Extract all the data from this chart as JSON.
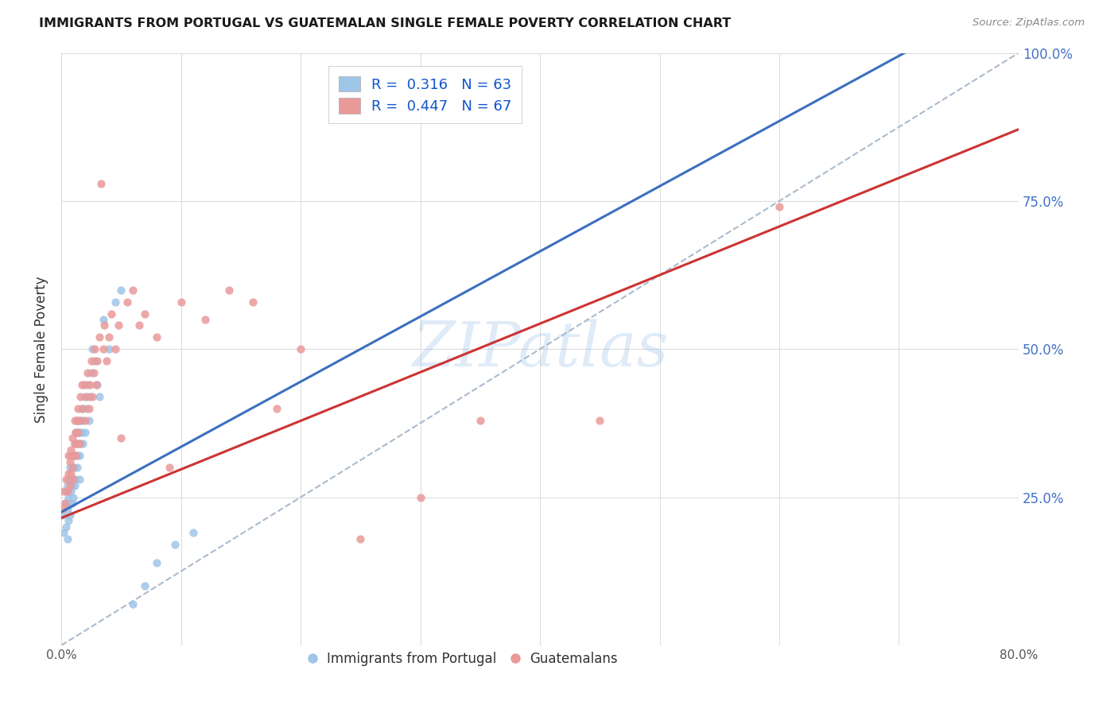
{
  "title": "IMMIGRANTS FROM PORTUGAL VS GUATEMALAN SINGLE FEMALE POVERTY CORRELATION CHART",
  "source": "Source: ZipAtlas.com",
  "ylabel": "Single Female Poverty",
  "xlim": [
    0.0,
    0.8
  ],
  "ylim": [
    0.0,
    1.0
  ],
  "watermark": "ZIPatlas",
  "blue_color": "#9fc5e8",
  "pink_color": "#ea9999",
  "blue_line_color": "#3c6fbf",
  "pink_line_color": "#cc3333",
  "dashed_line_color": "#aabbcc",
  "portugal_x": [
    0.001,
    0.002,
    0.003,
    0.004,
    0.004,
    0.005,
    0.005,
    0.005,
    0.006,
    0.006,
    0.006,
    0.007,
    0.007,
    0.007,
    0.008,
    0.008,
    0.008,
    0.009,
    0.009,
    0.009,
    0.01,
    0.01,
    0.01,
    0.011,
    0.011,
    0.011,
    0.012,
    0.012,
    0.012,
    0.013,
    0.013,
    0.013,
    0.014,
    0.014,
    0.015,
    0.015,
    0.015,
    0.016,
    0.016,
    0.017,
    0.017,
    0.018,
    0.018,
    0.019,
    0.02,
    0.021,
    0.022,
    0.023,
    0.024,
    0.025,
    0.026,
    0.028,
    0.03,
    0.032,
    0.035,
    0.04,
    0.045,
    0.05,
    0.06,
    0.07,
    0.08,
    0.095,
    0.11
  ],
  "portugal_y": [
    0.22,
    0.19,
    0.24,
    0.2,
    0.26,
    0.23,
    0.18,
    0.27,
    0.21,
    0.25,
    0.28,
    0.24,
    0.22,
    0.3,
    0.26,
    0.28,
    0.32,
    0.24,
    0.27,
    0.3,
    0.25,
    0.28,
    0.32,
    0.27,
    0.3,
    0.34,
    0.28,
    0.32,
    0.36,
    0.3,
    0.34,
    0.38,
    0.32,
    0.36,
    0.28,
    0.32,
    0.36,
    0.34,
    0.38,
    0.36,
    0.4,
    0.34,
    0.38,
    0.42,
    0.36,
    0.4,
    0.44,
    0.38,
    0.42,
    0.46,
    0.5,
    0.48,
    0.44,
    0.42,
    0.55,
    0.5,
    0.58,
    0.6,
    0.07,
    0.1,
    0.14,
    0.17,
    0.19
  ],
  "guatemalan_x": [
    0.001,
    0.002,
    0.003,
    0.004,
    0.005,
    0.006,
    0.006,
    0.007,
    0.007,
    0.008,
    0.008,
    0.009,
    0.009,
    0.01,
    0.01,
    0.011,
    0.011,
    0.012,
    0.012,
    0.013,
    0.013,
    0.014,
    0.014,
    0.015,
    0.015,
    0.016,
    0.017,
    0.018,
    0.019,
    0.02,
    0.021,
    0.022,
    0.023,
    0.024,
    0.025,
    0.026,
    0.027,
    0.028,
    0.029,
    0.03,
    0.032,
    0.033,
    0.035,
    0.036,
    0.038,
    0.04,
    0.042,
    0.045,
    0.048,
    0.05,
    0.055,
    0.06,
    0.065,
    0.07,
    0.08,
    0.09,
    0.1,
    0.12,
    0.14,
    0.16,
    0.18,
    0.2,
    0.25,
    0.3,
    0.35,
    0.45,
    0.6
  ],
  "guatemalan_y": [
    0.23,
    0.26,
    0.24,
    0.28,
    0.26,
    0.29,
    0.32,
    0.27,
    0.31,
    0.29,
    0.33,
    0.3,
    0.35,
    0.28,
    0.32,
    0.34,
    0.38,
    0.32,
    0.36,
    0.34,
    0.38,
    0.36,
    0.4,
    0.34,
    0.38,
    0.42,
    0.44,
    0.4,
    0.44,
    0.38,
    0.42,
    0.46,
    0.4,
    0.44,
    0.48,
    0.42,
    0.46,
    0.5,
    0.44,
    0.48,
    0.52,
    0.78,
    0.5,
    0.54,
    0.48,
    0.52,
    0.56,
    0.5,
    0.54,
    0.35,
    0.58,
    0.6,
    0.54,
    0.56,
    0.52,
    0.3,
    0.58,
    0.55,
    0.6,
    0.58,
    0.4,
    0.5,
    0.18,
    0.25,
    0.38,
    0.38,
    0.74
  ]
}
